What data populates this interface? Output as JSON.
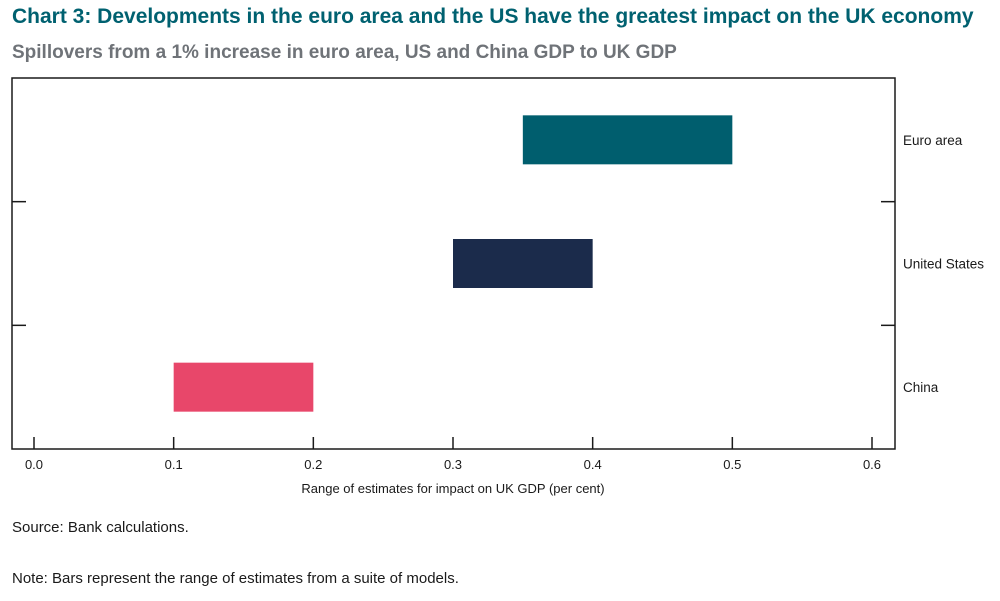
{
  "title": "Chart 3: Developments in the euro area and the US have the greatest impact on the UK economy",
  "subtitle": "Spillovers from a 1% increase in euro area, US and China GDP to UK GDP",
  "source": "Source: Bank calculations.",
  "note": "Note: Bars represent the range of estimates from a suite of models.",
  "chart_data": {
    "type": "bar",
    "orientation": "horizontal-range",
    "title": "Chart 3: Developments in the euro area and the US have the greatest impact on the UK economy",
    "subtitle": "Spillovers from a 1% increase in euro area, US and China GDP to UK GDP",
    "xlabel": "Range of estimates for impact on UK GDP (per cent)",
    "ylabel": "",
    "xlim": [
      0.0,
      0.6
    ],
    "x_ticks": [
      "0.0",
      "0.1",
      "0.2",
      "0.3",
      "0.4",
      "0.5",
      "0.6"
    ],
    "categories": [
      "Euro area",
      "United States",
      "China"
    ],
    "ranges": [
      {
        "category": "Euro area",
        "low": 0.35,
        "high": 0.5,
        "color": "#005e6e"
      },
      {
        "category": "United States",
        "low": 0.3,
        "high": 0.4,
        "color": "#1b2b4b"
      },
      {
        "category": "China",
        "low": 0.1,
        "high": 0.2,
        "color": "#e8476a"
      }
    ],
    "grid": false,
    "legend": "none"
  }
}
